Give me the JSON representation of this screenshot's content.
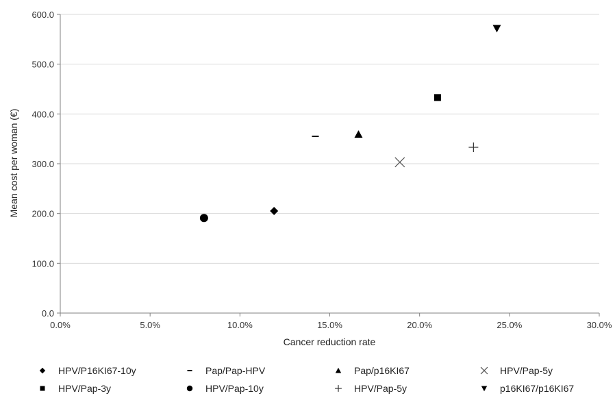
{
  "chart_data": {
    "type": "scatter",
    "title": "",
    "xlabel": "Cancer reduction rate",
    "ylabel": "Mean cost per woman (€)",
    "xlim": [
      0,
      30
    ],
    "ylim": [
      0,
      600
    ],
    "x_ticks": [
      "0.0%",
      "5.0%",
      "10.0%",
      "15.0%",
      "20.0%",
      "25.0%",
      "30.0%"
    ],
    "y_ticks": [
      "0.0",
      "100.0",
      "200.0",
      "300.0",
      "400.0",
      "500.0",
      "600.0"
    ],
    "grid": "horizontal",
    "legend_position": "bottom",
    "series": [
      {
        "name": "HPV/P16KI67-10y",
        "marker": "diamond",
        "x": 11.9,
        "y": 205
      },
      {
        "name": "Pap/Pap-HPV",
        "marker": "dash",
        "x": 14.2,
        "y": 355
      },
      {
        "name": "Pap/p16KI67",
        "marker": "triangle-up",
        "x": 16.6,
        "y": 359
      },
      {
        "name": "HPV/Pap-5y",
        "marker": "x",
        "x": 18.9,
        "y": 303
      },
      {
        "name": "HPV/Pap-3y",
        "marker": "square",
        "x": 21.0,
        "y": 433
      },
      {
        "name": "HPV/Pap-10y",
        "marker": "circle",
        "x": 8.0,
        "y": 191
      },
      {
        "name": "HPV/Pap-5y",
        "marker": "plus",
        "x": 23.0,
        "y": 333
      },
      {
        "name": "p16KI67/p16KI67",
        "marker": "triangle-down",
        "x": 24.3,
        "y": 572
      }
    ]
  },
  "colors": {
    "marker": "#000000",
    "grid": "#d9d9d9",
    "axis": "#808080"
  }
}
